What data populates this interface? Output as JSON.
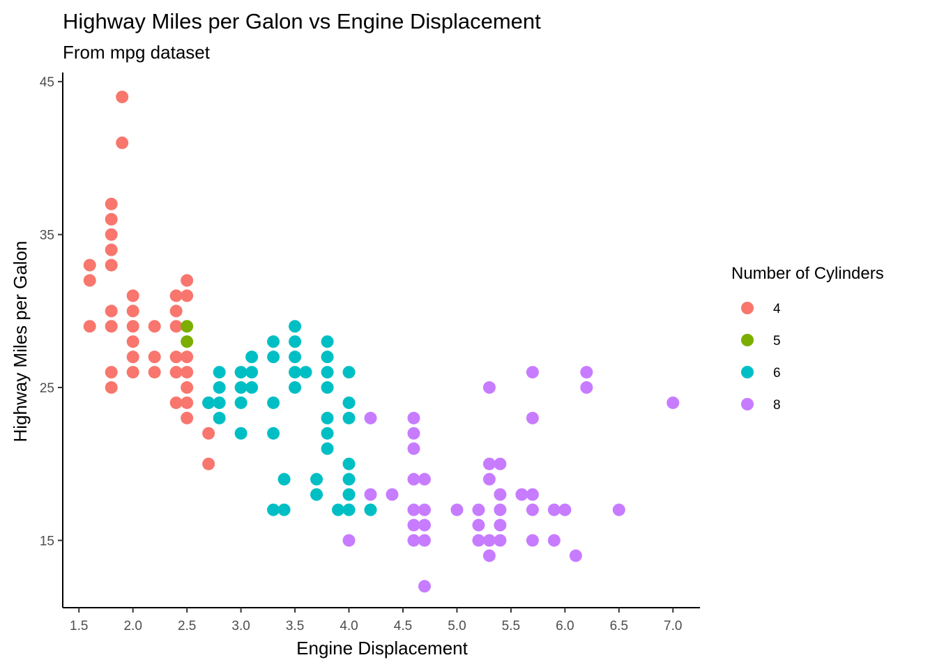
{
  "chart_data": {
    "type": "scatter",
    "title": "Highway Miles per Galon vs Engine Displacement",
    "subtitle": "From mpg dataset",
    "xlabel": "Engine Displacement",
    "ylabel": "Highway Miles per Galon",
    "xlim": [
      1.35,
      7.25
    ],
    "ylim": [
      10.6,
      45.6
    ],
    "x_ticks": [
      "1.5",
      "2.0",
      "2.5",
      "3.0",
      "3.5",
      "4.0",
      "4.5",
      "5.0",
      "5.5",
      "6.0",
      "6.5",
      "7.0"
    ],
    "y_ticks": [
      "15",
      "25",
      "35",
      "45"
    ],
    "grid": false,
    "legend": {
      "title": "Number of Cylinders",
      "position": "right"
    },
    "series": [
      {
        "name": "4",
        "color": "#F8766D",
        "points": [
          [
            1.6,
            33
          ],
          [
            1.6,
            32
          ],
          [
            1.6,
            29
          ],
          [
            1.8,
            37
          ],
          [
            1.8,
            36
          ],
          [
            1.8,
            35
          ],
          [
            1.8,
            34
          ],
          [
            1.8,
            33
          ],
          [
            1.8,
            30
          ],
          [
            1.8,
            29
          ],
          [
            1.8,
            26
          ],
          [
            1.8,
            25
          ],
          [
            1.9,
            44
          ],
          [
            1.9,
            41
          ],
          [
            2.0,
            31
          ],
          [
            2.0,
            30
          ],
          [
            2.0,
            29
          ],
          [
            2.0,
            28
          ],
          [
            2.0,
            27
          ],
          [
            2.0,
            26
          ],
          [
            2.2,
            29
          ],
          [
            2.2,
            27
          ],
          [
            2.2,
            26
          ],
          [
            2.4,
            31
          ],
          [
            2.4,
            30
          ],
          [
            2.4,
            29
          ],
          [
            2.4,
            27
          ],
          [
            2.4,
            26
          ],
          [
            2.4,
            24
          ],
          [
            2.5,
            32
          ],
          [
            2.5,
            31
          ],
          [
            2.5,
            27
          ],
          [
            2.5,
            26
          ],
          [
            2.5,
            25
          ],
          [
            2.5,
            24
          ],
          [
            2.5,
            23
          ],
          [
            2.7,
            24
          ],
          [
            2.7,
            22
          ],
          [
            2.7,
            20
          ]
        ]
      },
      {
        "name": "5",
        "color": "#7CAE00",
        "points": [
          [
            2.5,
            29
          ],
          [
            2.5,
            28
          ]
        ]
      },
      {
        "name": "6",
        "color": "#00BFC4",
        "points": [
          [
            2.7,
            24
          ],
          [
            2.8,
            26
          ],
          [
            2.8,
            25
          ],
          [
            2.8,
            24
          ],
          [
            2.8,
            23
          ],
          [
            3.0,
            26
          ],
          [
            3.0,
            25
          ],
          [
            3.0,
            24
          ],
          [
            3.0,
            22
          ],
          [
            3.1,
            27
          ],
          [
            3.1,
            26
          ],
          [
            3.1,
            25
          ],
          [
            3.3,
            28
          ],
          [
            3.3,
            27
          ],
          [
            3.3,
            24
          ],
          [
            3.3,
            22
          ],
          [
            3.3,
            17
          ],
          [
            3.4,
            19
          ],
          [
            3.4,
            17
          ],
          [
            3.5,
            29
          ],
          [
            3.5,
            28
          ],
          [
            3.5,
            27
          ],
          [
            3.5,
            26
          ],
          [
            3.5,
            25
          ],
          [
            3.6,
            26
          ],
          [
            3.7,
            19
          ],
          [
            3.7,
            18
          ],
          [
            3.8,
            28
          ],
          [
            3.8,
            27
          ],
          [
            3.8,
            26
          ],
          [
            3.8,
            25
          ],
          [
            3.8,
            23
          ],
          [
            3.8,
            22
          ],
          [
            3.8,
            21
          ],
          [
            3.9,
            17
          ],
          [
            4.0,
            26
          ],
          [
            4.0,
            24
          ],
          [
            4.0,
            23
          ],
          [
            4.0,
            20
          ],
          [
            4.0,
            19
          ],
          [
            4.0,
            18
          ],
          [
            4.0,
            17
          ],
          [
            4.2,
            17
          ]
        ]
      },
      {
        "name": "8",
        "color": "#C77CFF",
        "points": [
          [
            4.0,
            15
          ],
          [
            4.2,
            23
          ],
          [
            4.2,
            18
          ],
          [
            4.4,
            18
          ],
          [
            4.6,
            23
          ],
          [
            4.6,
            22
          ],
          [
            4.6,
            21
          ],
          [
            4.6,
            19
          ],
          [
            4.6,
            17
          ],
          [
            4.6,
            16
          ],
          [
            4.6,
            15
          ],
          [
            4.7,
            19
          ],
          [
            4.7,
            17
          ],
          [
            4.7,
            16
          ],
          [
            4.7,
            15
          ],
          [
            4.7,
            12
          ],
          [
            5.0,
            17
          ],
          [
            5.2,
            17
          ],
          [
            5.2,
            16
          ],
          [
            5.2,
            15
          ],
          [
            5.3,
            25
          ],
          [
            5.3,
            20
          ],
          [
            5.3,
            19
          ],
          [
            5.3,
            15
          ],
          [
            5.3,
            14
          ],
          [
            5.4,
            20
          ],
          [
            5.4,
            18
          ],
          [
            5.4,
            17
          ],
          [
            5.4,
            16
          ],
          [
            5.4,
            15
          ],
          [
            5.6,
            18
          ],
          [
            5.7,
            26
          ],
          [
            5.7,
            23
          ],
          [
            5.7,
            18
          ],
          [
            5.7,
            17
          ],
          [
            5.7,
            15
          ],
          [
            5.9,
            17
          ],
          [
            5.9,
            15
          ],
          [
            6.0,
            17
          ],
          [
            6.1,
            14
          ],
          [
            6.2,
            26
          ],
          [
            6.2,
            25
          ],
          [
            6.5,
            17
          ],
          [
            7.0,
            24
          ]
        ]
      }
    ]
  }
}
